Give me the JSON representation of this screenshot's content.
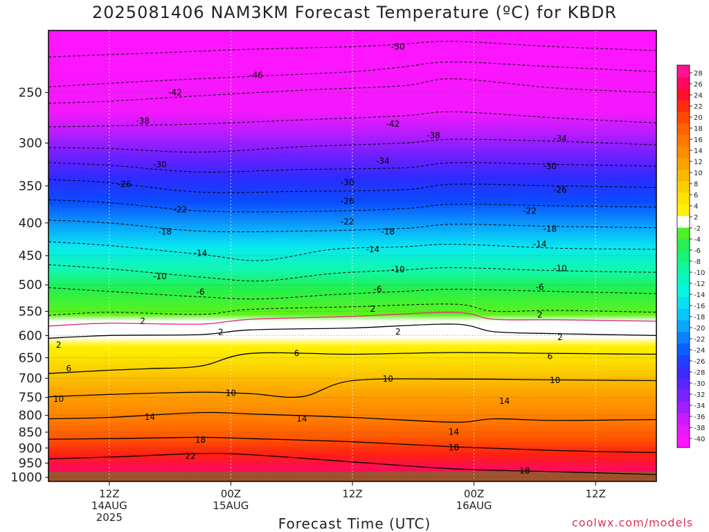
{
  "title": "2025081406 NAM3KM Forecast Temperature (ºC) for KBDR",
  "credit": "coolwx.com/models",
  "chart_data": {
    "type": "heatmap",
    "title": "2025081406 NAM3KM Forecast Temperature (ºC) for KBDR",
    "xlabel": "Forecast Time (UTC)",
    "ylabel": "",
    "y_axis": {
      "scale": "log-pressure",
      "units": "hPa",
      "ticks": [
        250,
        300,
        350,
        400,
        450,
        500,
        550,
        600,
        650,
        700,
        750,
        800,
        850,
        900,
        950,
        1000
      ],
      "range": [
        1015,
        200
      ]
    },
    "x_axis": {
      "units": "forecast hour",
      "range": [
        0,
        60
      ],
      "ticks": [
        {
          "hour": 6,
          "lines": [
            "12Z",
            "14AUG",
            "2025"
          ]
        },
        {
          "hour": 18,
          "lines": [
            "00Z",
            "15AUG"
          ]
        },
        {
          "hour": 30,
          "lines": [
            "12Z"
          ]
        },
        {
          "hour": 42,
          "lines": [
            "00Z",
            "16AUG"
          ]
        },
        {
          "hour": 54,
          "lines": [
            "12Z"
          ]
        }
      ]
    },
    "grid": true,
    "colorbar": {
      "placement": "right",
      "levels": [
        -40,
        -38,
        -36,
        -34,
        -32,
        -30,
        -28,
        -26,
        -24,
        -22,
        -20,
        -18,
        -16,
        -14,
        -12,
        -10,
        -8,
        -6,
        -4,
        -2,
        2,
        4,
        6,
        8,
        10,
        12,
        14,
        16,
        18,
        20,
        22,
        24,
        28
      ],
      "labels": [
        "28",
        "26",
        "24",
        "22",
        "20",
        "18",
        "16",
        "14",
        "12",
        "10",
        "8",
        "6",
        "4",
        "2",
        "-2",
        "-4",
        "-6",
        "-8",
        "-10",
        "-12",
        "-14",
        "-16",
        "-18",
        "-20",
        "-22",
        "-24",
        "-26",
        "-28",
        "-30",
        "-32",
        "-34",
        "-36",
        "-38",
        "-40"
      ]
    },
    "series": [
      {
        "temp": -50,
        "x": [
          0,
          10,
          20,
          30,
          35,
          40,
          50,
          60
        ],
        "pressure": [
          220,
          217,
          214,
          212,
          210,
          208,
          212,
          215
        ]
      },
      {
        "temp": -46,
        "x": [
          0,
          10,
          20,
          30,
          35,
          40,
          50,
          60
        ],
        "pressure": [
          245,
          240,
          236,
          232,
          228,
          224,
          228,
          232
        ]
      },
      {
        "temp": -42,
        "x": [
          0,
          6,
          15,
          25,
          35,
          40,
          50,
          60
        ],
        "pressure": [
          260,
          258,
          253,
          248,
          244,
          238,
          246,
          250
        ]
      },
      {
        "temp": -38,
        "x": [
          0,
          6,
          15,
          25,
          35,
          40,
          50,
          60
        ],
        "pressure": [
          283,
          282,
          280,
          276,
          272,
          268,
          274,
          279
        ]
      },
      {
        "temp": -34,
        "x": [
          0,
          6,
          15,
          25,
          35,
          40,
          50,
          60
        ],
        "pressure": [
          305,
          306,
          310,
          304,
          300,
          296,
          298,
          302
        ]
      },
      {
        "temp": -30,
        "x": [
          0,
          6,
          15,
          25,
          35,
          40,
          50,
          60
        ],
        "pressure": [
          322,
          325,
          333,
          330,
          328,
          322,
          324,
          326
        ]
      },
      {
        "temp": -26,
        "x": [
          0,
          6,
          15,
          25,
          35,
          40,
          50,
          60
        ],
        "pressure": [
          342,
          346,
          358,
          357,
          355,
          348,
          350,
          352
        ]
      },
      {
        "temp": -22,
        "x": [
          0,
          6,
          15,
          25,
          35,
          40,
          50,
          60
        ],
        "pressure": [
          368,
          372,
          383,
          384,
          380,
          374,
          376,
          378
        ]
      },
      {
        "temp": -18,
        "x": [
          0,
          6,
          15,
          25,
          35,
          40,
          50,
          60
        ],
        "pressure": [
          396,
          400,
          412,
          412,
          408,
          402,
          405,
          407
        ]
      },
      {
        "temp": -14,
        "x": [
          0,
          6,
          15,
          21,
          28,
          35,
          40,
          50,
          60
        ],
        "pressure": [
          428,
          434,
          448,
          458,
          440,
          436,
          432,
          438,
          440
        ]
      },
      {
        "temp": -10,
        "x": [
          0,
          6,
          15,
          21,
          28,
          35,
          40,
          50,
          60
        ],
        "pressure": [
          465,
          472,
          486,
          493,
          480,
          474,
          470,
          475,
          478
        ]
      },
      {
        "temp": -6,
        "x": [
          0,
          6,
          15,
          21,
          28,
          35,
          40,
          50,
          60
        ],
        "pressure": [
          505,
          512,
          522,
          526,
          518,
          512,
          508,
          512,
          516
        ]
      },
      {
        "temp": -2,
        "x": [
          0,
          6,
          15,
          20,
          30,
          40,
          44,
          50,
          60
        ],
        "pressure": [
          558,
          552,
          556,
          546,
          541,
          536,
          550,
          548,
          552
        ]
      },
      {
        "temp": 0,
        "x": [
          0,
          6,
          15,
          20,
          30,
          40,
          44,
          50,
          60
        ],
        "pressure": [
          580,
          574,
          576,
          566,
          560,
          552,
          566,
          567,
          570
        ]
      },
      {
        "temp": 2,
        "x": [
          0,
          6,
          15,
          20,
          30,
          40,
          44,
          50,
          60
        ],
        "pressure": [
          606,
          600,
          598,
          588,
          584,
          576,
          592,
          596,
          600
        ]
      },
      {
        "temp": 6,
        "x": [
          0,
          6,
          10,
          15,
          20,
          30,
          40,
          50,
          60
        ],
        "pressure": [
          688,
          680,
          676,
          670,
          640,
          642,
          638,
          640,
          642
        ]
      },
      {
        "temp": 10,
        "x": [
          0,
          6,
          15,
          20,
          25,
          30,
          40,
          50,
          60
        ],
        "pressure": [
          748,
          742,
          736,
          740,
          748,
          706,
          702,
          704,
          706
        ]
      },
      {
        "temp": 14,
        "x": [
          0,
          6,
          15,
          20,
          30,
          40,
          44,
          50,
          60
        ],
        "pressure": [
          810,
          806,
          792,
          796,
          806,
          820,
          810,
          815,
          812
        ]
      },
      {
        "temp": 18,
        "x": [
          0,
          6,
          15,
          20,
          30,
          40,
          50,
          60
        ],
        "pressure": [
          872,
          870,
          866,
          870,
          880,
          896,
          908,
          915
        ]
      },
      {
        "temp": 22,
        "x": [
          0,
          6,
          15,
          20,
          30,
          40,
          50,
          60
        ],
        "pressure": [
          936,
          930,
          918,
          922,
          946,
          970,
          980,
          990
        ]
      }
    ],
    "contour_labels": [
      {
        "text": "-50",
        "x": 34.5,
        "p": 212
      },
      {
        "text": "-46",
        "x": 20.5,
        "p": 235
      },
      {
        "text": "-42",
        "x": 12.5,
        "p": 250
      },
      {
        "text": "-42",
        "x": 34,
        "p": 280
      },
      {
        "text": "-38",
        "x": 9.3,
        "p": 277
      },
      {
        "text": "-38",
        "x": 38,
        "p": 292
      },
      {
        "text": "-34",
        "x": 33,
        "p": 320
      },
      {
        "text": "-34",
        "x": 50.5,
        "p": 295
      },
      {
        "text": "-30",
        "x": 11,
        "p": 324
      },
      {
        "text": "-30",
        "x": 29.5,
        "p": 346
      },
      {
        "text": "-30",
        "x": 49.5,
        "p": 326
      },
      {
        "text": "-26",
        "x": 7.5,
        "p": 348
      },
      {
        "text": "-26",
        "x": 29.5,
        "p": 370
      },
      {
        "text": "-26",
        "x": 50.5,
        "p": 355
      },
      {
        "text": "-22",
        "x": 13,
        "p": 381
      },
      {
        "text": "-22",
        "x": 29.5,
        "p": 398
      },
      {
        "text": "-22",
        "x": 47.5,
        "p": 383
      },
      {
        "text": "-18",
        "x": 11.5,
        "p": 413
      },
      {
        "text": "-18",
        "x": 33.5,
        "p": 413
      },
      {
        "text": "-18",
        "x": 49.5,
        "p": 409
      },
      {
        "text": "-14",
        "x": 15,
        "p": 446
      },
      {
        "text": "-14",
        "x": 32,
        "p": 440
      },
      {
        "text": "-14",
        "x": 48.5,
        "p": 432
      },
      {
        "text": "-10",
        "x": 11,
        "p": 485
      },
      {
        "text": "-10",
        "x": 34.5,
        "p": 473
      },
      {
        "text": "-10",
        "x": 50.5,
        "p": 471
      },
      {
        "text": "-6",
        "x": 15,
        "p": 513
      },
      {
        "text": "-6",
        "x": 32.5,
        "p": 508
      },
      {
        "text": "-6",
        "x": 48.5,
        "p": 504
      },
      {
        "text": "2",
        "x": 9.3,
        "p": 570
      },
      {
        "text": "2",
        "x": 32,
        "p": 545
      },
      {
        "text": "2",
        "x": 48.5,
        "p": 557
      },
      {
        "text": "2",
        "x": 1,
        "p": 621
      },
      {
        "text": "2",
        "x": 17,
        "p": 593
      },
      {
        "text": "2",
        "x": 34.5,
        "p": 592
      },
      {
        "text": "2",
        "x": 50.5,
        "p": 604
      },
      {
        "text": "6",
        "x": 2,
        "p": 676
      },
      {
        "text": "6",
        "x": 24.5,
        "p": 640
      },
      {
        "text": "6",
        "x": 49.5,
        "p": 647
      },
      {
        "text": "10",
        "x": 1,
        "p": 754
      },
      {
        "text": "10",
        "x": 18,
        "p": 738
      },
      {
        "text": "10",
        "x": 33.5,
        "p": 702
      },
      {
        "text": "10",
        "x": 50,
        "p": 705
      },
      {
        "text": "14",
        "x": 10,
        "p": 805
      },
      {
        "text": "14",
        "x": 25,
        "p": 810
      },
      {
        "text": "14",
        "x": 40,
        "p": 849
      },
      {
        "text": "14",
        "x": 45,
        "p": 760
      },
      {
        "text": "18",
        "x": 15,
        "p": 874
      },
      {
        "text": "18",
        "x": 40,
        "p": 898
      },
      {
        "text": "18",
        "x": 47,
        "p": 976
      },
      {
        "text": "22",
        "x": 14,
        "p": 927
      }
    ]
  }
}
